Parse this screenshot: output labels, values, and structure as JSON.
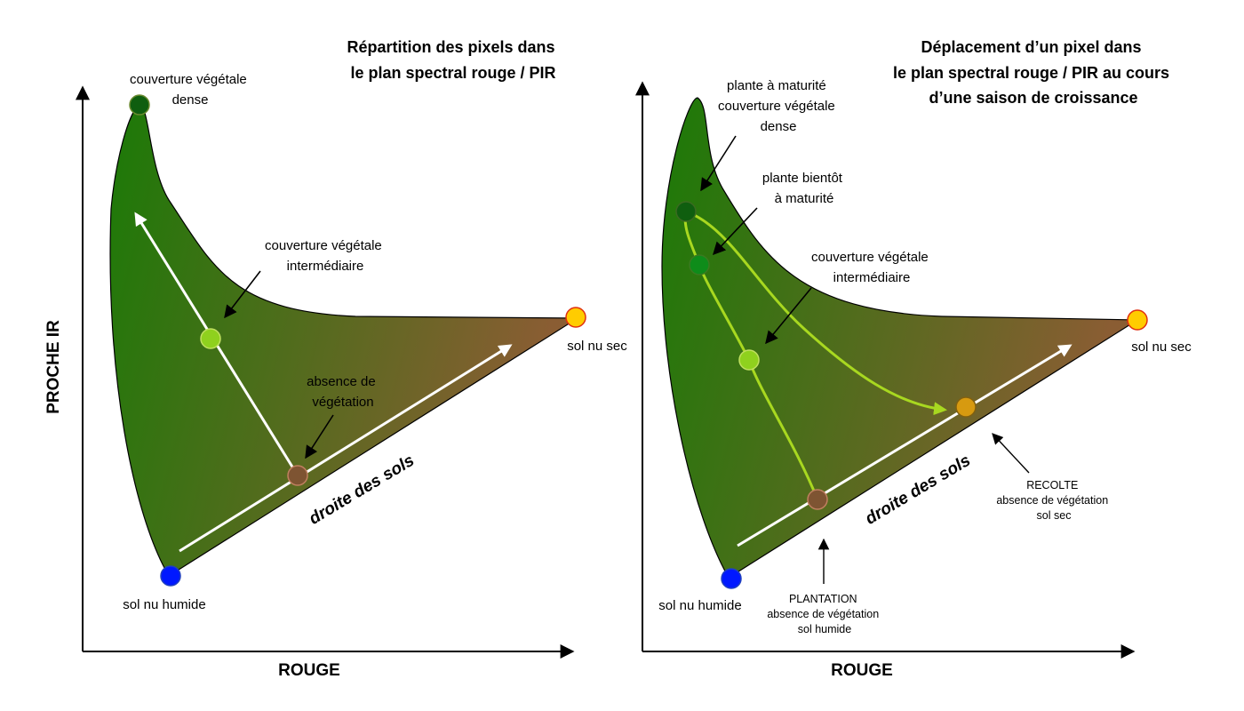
{
  "colors": {
    "green_dark": "#1b7a07",
    "brown": "#8a5d33",
    "dot_dense": "#0f5e0f",
    "dot_soon": "#0e8c1a",
    "dot_mid": "#8fd11e",
    "dot_soil": "#7e5432",
    "dot_dry": "#ffcc00",
    "dot_harvest": "#d79a10",
    "dot_wet": "#0018ff",
    "curve": "#a8d820"
  },
  "left": {
    "title": [
      "Répartition des pixels dans",
      "le plan spectral rouge / PIR"
    ],
    "y_axis_label": "PROCHE IR",
    "x_axis_label": "ROUGE",
    "dense_cover": [
      "couverture végétale",
      "dense"
    ],
    "intermediate_cover": [
      "couverture végétale",
      "intermédiaire"
    ],
    "no_vegetation": [
      "absence de",
      "végétation"
    ],
    "soil_line": "droite des sols",
    "dry_soil": "sol nu sec",
    "wet_soil": "sol nu humide"
  },
  "right": {
    "title": [
      "Déplacement d’un pixel dans",
      "le plan spectral rouge / PIR au cours",
      "d’une saison de croissance"
    ],
    "x_axis_label": "ROUGE",
    "mature_plant": [
      "plante à maturité",
      "couverture végétale",
      "dense"
    ],
    "almost_mature": [
      "plante bientôt",
      "à maturité"
    ],
    "intermediate_cover": [
      "couverture végétale",
      "intermédiaire"
    ],
    "soil_line": "droite des sols",
    "dry_soil": "sol nu sec",
    "wet_soil": "sol nu humide",
    "harvest": [
      "RECOLTE",
      "absence de végétation",
      "sol sec"
    ],
    "planting": [
      "PLANTATION",
      "absence de végétation",
      "sol humide"
    ]
  }
}
